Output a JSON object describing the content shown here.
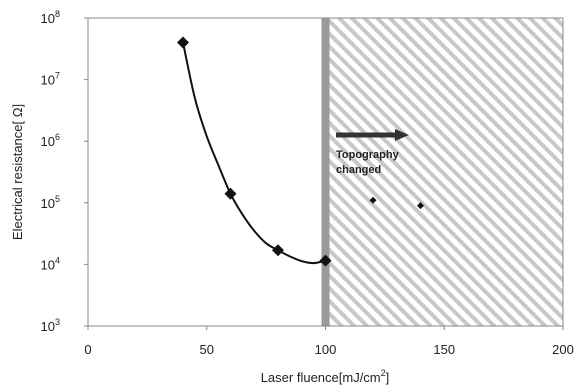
{
  "chart_data": {
    "type": "scatter",
    "xlabel": "Laser fluence[mJ/cm",
    "xlabel_sup": "2",
    "xlabel_end": "]",
    "ylabel": "Electrical resistance[ Ω]",
    "x_ticks": [
      0,
      50,
      100,
      150,
      200
    ],
    "y_ticks": [
      {
        "base": "10",
        "exp": "3",
        "value": 1000
      },
      {
        "base": "10",
        "exp": "4",
        "value": 10000
      },
      {
        "base": "10",
        "exp": "5",
        "value": 100000
      },
      {
        "base": "10",
        "exp": "6",
        "value": 1000000
      },
      {
        "base": "10",
        "exp": "7",
        "value": 10000000
      },
      {
        "base": "10",
        "exp": "8",
        "value": 100000000
      }
    ],
    "xlim": [
      0,
      200
    ],
    "ylim": [
      1000,
      100000000
    ],
    "y_scale": "log",
    "grid": false,
    "series": [
      {
        "marker": "diamond-large",
        "points": [
          {
            "x": 40,
            "y": 40000000
          },
          {
            "x": 60,
            "y": 140000
          },
          {
            "x": 80,
            "y": 17000
          },
          {
            "x": 100,
            "y": 11500
          }
        ]
      },
      {
        "marker": "diamond-small",
        "points": [
          {
            "x": 120,
            "y": 110000
          },
          {
            "x": 140,
            "y": 90000
          }
        ]
      }
    ],
    "fit_curve": [
      {
        "x": 40,
        "y": 40000000
      },
      {
        "x": 45,
        "y": 5000000
      },
      {
        "x": 50,
        "y": 1200000
      },
      {
        "x": 55,
        "y": 400000
      },
      {
        "x": 60,
        "y": 140000
      },
      {
        "x": 65,
        "y": 65000
      },
      {
        "x": 70,
        "y": 35000
      },
      {
        "x": 75,
        "y": 22000
      },
      {
        "x": 80,
        "y": 17000
      },
      {
        "x": 85,
        "y": 13500
      },
      {
        "x": 90,
        "y": 11300
      },
      {
        "x": 95,
        "y": 10500
      },
      {
        "x": 100,
        "y": 11500
      }
    ],
    "threshold_x": 100,
    "hatched_region": {
      "x_from": 100,
      "x_to": 200
    },
    "annotation": {
      "line1": "Topography",
      "line2": "changed"
    },
    "colors": {
      "marker": "#111111",
      "threshold_bar": "#9a9a9a",
      "hatch": "#c8c8c8",
      "arrow": "#333333"
    }
  }
}
